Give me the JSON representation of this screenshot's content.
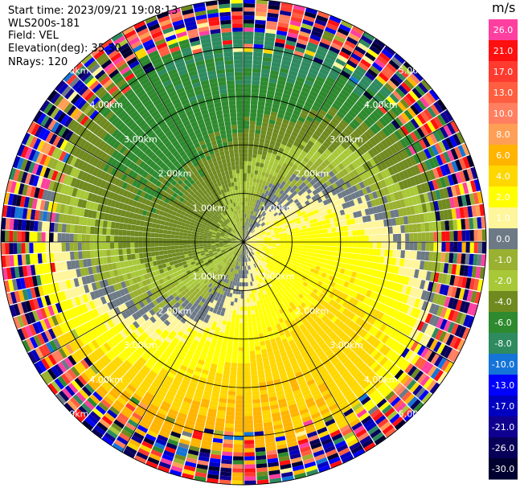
{
  "header": {
    "start_time": "Start time: 2023/09/21 19:08:13",
    "instrument": "WLS200s-181",
    "field": "Field: VEL",
    "elevation": "Elevation(deg): 35.30",
    "nrays": "NRays: 120"
  },
  "chart_data": {
    "type": "heatmap",
    "projection": "polar-ppi",
    "field": "VEL",
    "units": "m/s",
    "nrays": 120,
    "range_ring_labels": [
      "1.00km",
      "2.00km",
      "3.00km",
      "4.00km",
      "5.00km"
    ],
    "max_range_km": 5.0,
    "range_gates": 60,
    "azimuth_lines_deg": [
      0,
      30,
      60,
      90,
      120,
      150,
      180,
      210,
      240,
      270,
      300,
      330
    ],
    "colorbar": {
      "title": "m/s",
      "placement": "right",
      "tick_labels": [
        "26.0",
        "21.0",
        "17.0",
        "13.0",
        "10.0",
        "8.0",
        "6.0",
        "4.0",
        "2.0",
        "1.0",
        "0.0",
        "-1.0",
        "-2.0",
        "-4.0",
        "-6.0",
        "-8.0",
        "-10.0",
        "-13.0",
        "-17.0",
        "-21.0",
        "-26.0",
        "-30.0"
      ],
      "colors": [
        "#ff3fa0",
        "#ff1010",
        "#ff3b2f",
        "#ff5f40",
        "#ff7f60",
        "#ff9f55",
        "#ffb400",
        "#ffd700",
        "#ffff00",
        "#fff59a",
        "#6d7a86",
        "#9ab030",
        "#a8c838",
        "#708a20",
        "#2e8a2e",
        "#2e8a5f",
        "#1474d8",
        "#0000ff",
        "#0000c0",
        "#100090",
        "#080058",
        "#000030"
      ],
      "boundaries": [
        30,
        26,
        21,
        17,
        13,
        10,
        8,
        6,
        4,
        2,
        1,
        0,
        -1,
        -2,
        -4,
        -6,
        -8,
        -10,
        -13,
        -17,
        -21,
        -26,
        -30
      ]
    },
    "wind_model": {
      "dominant_flow": "away toward east (positive), toward radar from west (negative)",
      "noise_beyond_km": 4.3
    }
  }
}
